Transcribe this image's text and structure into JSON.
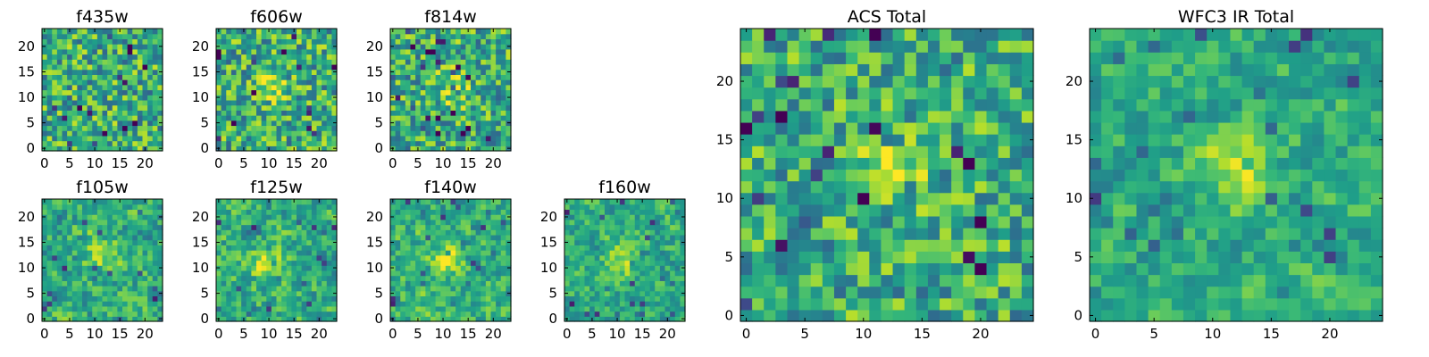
{
  "figure": {
    "description_free": true
  },
  "chart_data": [
    {
      "type": "heatmap",
      "title": "f435w",
      "colormap": "viridis",
      "grid": false,
      "rows": 24,
      "cols": 24,
      "peak": null,
      "noise": 0.3,
      "smooth": 0,
      "xlim": [
        -0.5,
        23.5
      ],
      "ylim": [
        -0.5,
        23.5
      ],
      "xticks": [
        0,
        5,
        10,
        15,
        20
      ],
      "yticks": [
        0,
        5,
        10,
        15,
        20
      ],
      "xtick_labels": [
        "0",
        "5",
        "10",
        "15",
        "20"
      ],
      "ytick_labels": [
        "0",
        "5",
        "10",
        "15",
        "20"
      ]
    },
    {
      "type": "heatmap",
      "title": "f606w",
      "colormap": "viridis",
      "grid": false,
      "rows": 24,
      "cols": 24,
      "peak": [
        10,
        12
      ],
      "noise": 0.3,
      "smooth": 0,
      "xlim": [
        -0.5,
        23.5
      ],
      "ylim": [
        -0.5,
        23.5
      ],
      "xticks": [
        0,
        5,
        10,
        15,
        20
      ],
      "yticks": [
        0,
        5,
        10,
        15,
        20
      ],
      "xtick_labels": [
        "0",
        "5",
        "10",
        "15",
        "20"
      ],
      "ytick_labels": [
        "0",
        "5",
        "10",
        "15",
        "20"
      ]
    },
    {
      "type": "heatmap",
      "title": "f814w",
      "colormap": "viridis",
      "grid": false,
      "rows": 24,
      "cols": 24,
      "peak": [
        12,
        12
      ],
      "noise": 0.3,
      "smooth": 0,
      "xlim": [
        -0.5,
        23.5
      ],
      "ylim": [
        -0.5,
        23.5
      ],
      "xticks": [
        0,
        5,
        10,
        15,
        20
      ],
      "yticks": [
        0,
        5,
        10,
        15,
        20
      ],
      "xtick_labels": [
        "0",
        "5",
        "10",
        "15",
        "20"
      ],
      "ytick_labels": [
        "0",
        "5",
        "10",
        "15",
        "20"
      ]
    },
    {
      "type": "heatmap",
      "title": "f105w",
      "colormap": "viridis",
      "grid": false,
      "rows": 24,
      "cols": 24,
      "peak": [
        11,
        13
      ],
      "noise": 0.28,
      "smooth": 1,
      "xlim": [
        -0.5,
        23.5
      ],
      "ylim": [
        -0.5,
        23.5
      ],
      "xticks": [
        0,
        5,
        10,
        15,
        20
      ],
      "yticks": [
        0,
        5,
        10,
        15,
        20
      ],
      "xtick_labels": [
        "0",
        "5",
        "10",
        "15",
        "20"
      ],
      "ytick_labels": [
        "0",
        "5",
        "10",
        "15",
        "20"
      ]
    },
    {
      "type": "heatmap",
      "title": "f125w",
      "colormap": "viridis",
      "grid": false,
      "rows": 24,
      "cols": 24,
      "peak": [
        9,
        11
      ],
      "noise": 0.28,
      "smooth": 1,
      "xlim": [
        -0.5,
        23.5
      ],
      "ylim": [
        -0.5,
        23.5
      ],
      "xticks": [
        0,
        5,
        10,
        15,
        20
      ],
      "yticks": [
        0,
        5,
        10,
        15,
        20
      ],
      "xtick_labels": [
        "0",
        "5",
        "10",
        "15",
        "20"
      ],
      "ytick_labels": [
        "0",
        "5",
        "10",
        "15",
        "20"
      ]
    },
    {
      "type": "heatmap",
      "title": "f140w",
      "colormap": "viridis",
      "grid": false,
      "rows": 24,
      "cols": 24,
      "peak": [
        11,
        12
      ],
      "noise": 0.28,
      "smooth": 1,
      "xlim": [
        -0.5,
        23.5
      ],
      "ylim": [
        -0.5,
        23.5
      ],
      "xticks": [
        0,
        5,
        10,
        15,
        20
      ],
      "yticks": [
        0,
        5,
        10,
        15,
        20
      ],
      "xtick_labels": [
        "0",
        "5",
        "10",
        "15",
        "20"
      ],
      "ytick_labels": [
        "0",
        "5",
        "10",
        "15",
        "20"
      ]
    },
    {
      "type": "heatmap",
      "title": "f160w",
      "colormap": "viridis",
      "grid": false,
      "rows": 24,
      "cols": 24,
      "peak": [
        11,
        12
      ],
      "noise": 0.24,
      "smooth": 1,
      "xlim": [
        -0.5,
        23.5
      ],
      "ylim": [
        -0.5,
        23.5
      ],
      "xticks": [
        0,
        5,
        10,
        15,
        20
      ],
      "yticks": [
        0,
        5,
        10,
        15,
        20
      ],
      "xtick_labels": [
        "0",
        "5",
        "10",
        "15",
        "20"
      ],
      "ytick_labels": [
        "0",
        "5",
        "10",
        "15",
        "20"
      ]
    },
    {
      "type": "heatmap",
      "title": "ACS Total",
      "colormap": "viridis",
      "grid": false,
      "rows": 25,
      "cols": 25,
      "peak": [
        12,
        13
      ],
      "noise": 0.28,
      "smooth": 0,
      "xlim": [
        -0.5,
        24.5
      ],
      "ylim": [
        -0.5,
        24.5
      ],
      "xticks": [
        0,
        5,
        10,
        15,
        20
      ],
      "yticks": [
        0,
        5,
        10,
        15,
        20
      ],
      "xtick_labels": [
        "0",
        "5",
        "10",
        "15",
        "20"
      ],
      "ytick_labels": [
        "0",
        "5",
        "10",
        "15",
        "20"
      ]
    },
    {
      "type": "heatmap",
      "title": "WFC3 IR Total",
      "colormap": "viridis",
      "grid": false,
      "rows": 25,
      "cols": 25,
      "peak": [
        12,
        13
      ],
      "noise": 0.22,
      "smooth": 1,
      "xlim": [
        -0.5,
        24.5
      ],
      "ylim": [
        -0.5,
        24.5
      ],
      "xticks": [
        0,
        5,
        10,
        15,
        20
      ],
      "yticks": [
        0,
        5,
        10,
        15,
        20
      ],
      "xtick_labels": [
        "0",
        "5",
        "10",
        "15",
        "20"
      ],
      "ytick_labels": [
        "0",
        "5",
        "10",
        "15",
        "20"
      ]
    }
  ]
}
